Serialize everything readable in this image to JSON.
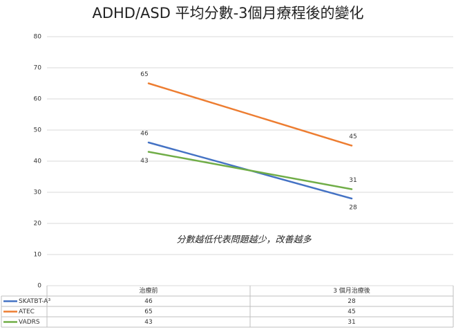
{
  "chart_data": {
    "type": "line",
    "title": "ADHD/ASD 平均分數-3個月療程後的變化",
    "annotation": "分數越低代表問題越少，改善越多",
    "categories": [
      "治療前",
      "3 個月治療後"
    ],
    "series": [
      {
        "name": "SKATBT-A³",
        "color": "#4472c4",
        "values": [
          46,
          28
        ]
      },
      {
        "name": "ATEC",
        "color": "#ed7d31",
        "values": [
          65,
          45
        ]
      },
      {
        "name": "VADRS",
        "color": "#70ad47",
        "values": [
          43,
          31
        ]
      }
    ],
    "ylim": [
      0,
      80
    ],
    "yticks": [
      0,
      10,
      20,
      30,
      40,
      50,
      60,
      70,
      80
    ],
    "grid": true
  }
}
